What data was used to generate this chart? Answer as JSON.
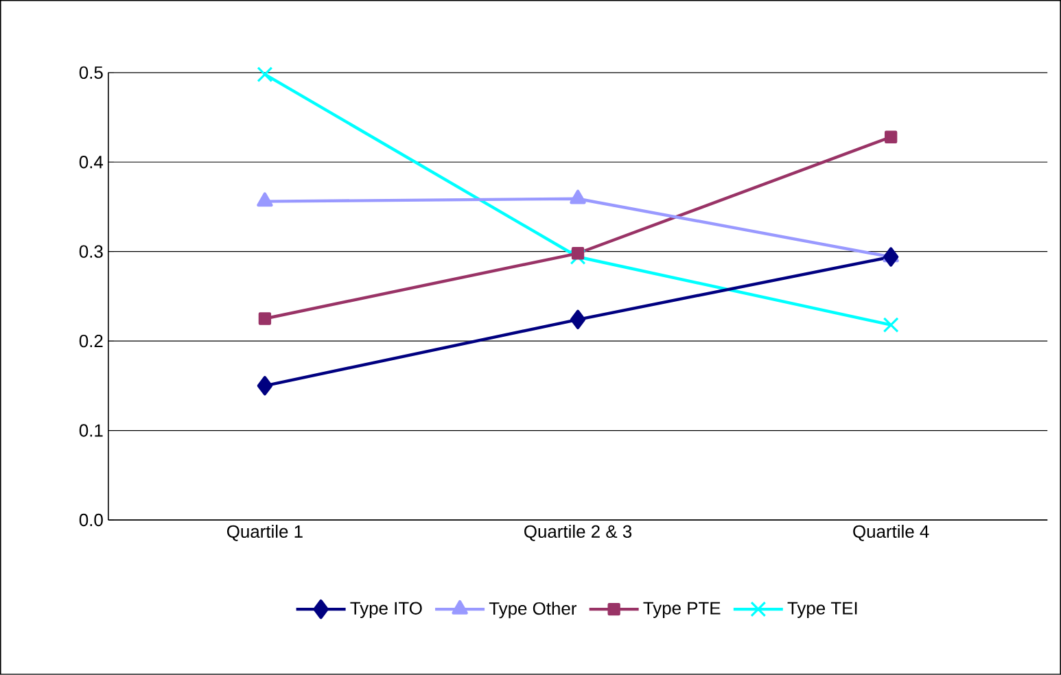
{
  "chart_data": {
    "type": "line",
    "categories": [
      "Quartile 1",
      "Quartile 2 & 3",
      "Quartile 4"
    ],
    "series": [
      {
        "name": "Type ITO",
        "color": "#000080",
        "marker": "diamond",
        "values": [
          0.15,
          0.224,
          0.294
        ]
      },
      {
        "name": "Type Other",
        "color": "#9999ff",
        "marker": "triangle",
        "values": [
          0.356,
          0.359,
          0.294
        ]
      },
      {
        "name": "Type PTE",
        "color": "#993366",
        "marker": "square",
        "values": [
          0.225,
          0.298,
          0.428
        ]
      },
      {
        "name": "Type TEI",
        "color": "#00ffff",
        "marker": "cross",
        "values": [
          0.498,
          0.294,
          0.218
        ]
      }
    ],
    "ylim": [
      0,
      0.5
    ],
    "yticks": [
      {
        "value": 0,
        "label": "0.0"
      },
      {
        "value": 0.1,
        "label": "0.1"
      },
      {
        "value": 0.2,
        "label": "0.2"
      },
      {
        "value": 0.3,
        "label": "0.3"
      },
      {
        "value": 0.4,
        "label": "0.4"
      },
      {
        "value": 0.5,
        "label": "0.5"
      }
    ],
    "grid": "y",
    "legend": "bottom",
    "line_style": "solid"
  }
}
